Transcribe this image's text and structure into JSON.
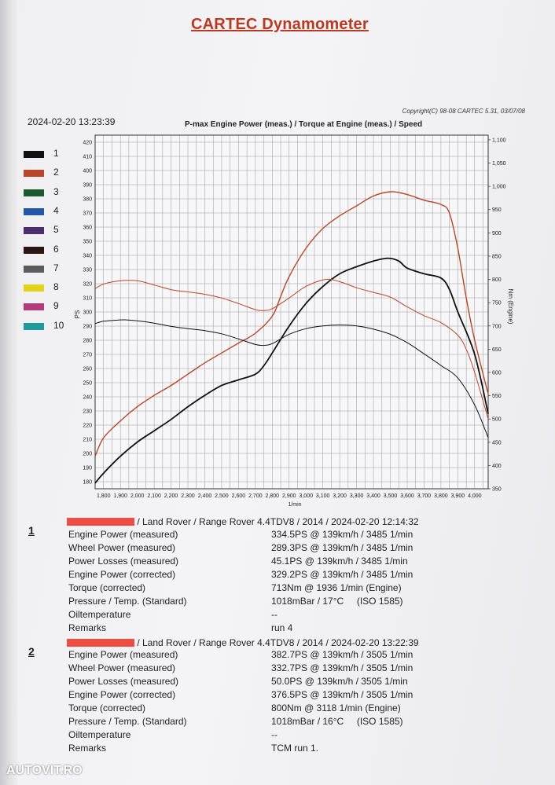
{
  "header": {
    "title": "CARTEC Dynamometer",
    "timestamp": "2024-02-20 13:23:39",
    "copyright": "Copyright(C) 98-08 CARTEC 5.31, 03/07/08"
  },
  "legend": [
    {
      "label": "1",
      "color": "#111111"
    },
    {
      "label": "2",
      "color": "#b8452a"
    },
    {
      "label": "3",
      "color": "#1e5a2f"
    },
    {
      "label": "4",
      "color": "#2358a8"
    },
    {
      "label": "5",
      "color": "#4a2e6e"
    },
    {
      "label": "6",
      "color": "#2a1616"
    },
    {
      "label": "7",
      "color": "#5c5c5c"
    },
    {
      "label": "8",
      "color": "#e3d21a"
    },
    {
      "label": "9",
      "color": "#b43a79"
    },
    {
      "label": "10",
      "color": "#1e9a9a"
    }
  ],
  "chart_data": {
    "type": "line",
    "title": "P-max Engine Power (meas.) / Torque at Engine (meas.) / Speed",
    "xlabel": "1/min",
    "ylabel": "PS",
    "y2label": "Nm (Engine)",
    "xlim": [
      1750,
      4080
    ],
    "ylim": [
      175,
      425
    ],
    "y2lim": [
      350,
      1110
    ],
    "x_ticks": [
      1800,
      1900,
      2000,
      2100,
      2200,
      2300,
      2400,
      2500,
      2600,
      2700,
      2800,
      2900,
      3000,
      3100,
      3200,
      3300,
      3400,
      3500,
      3600,
      3700,
      3800,
      3900,
      4000
    ],
    "x_tick_labels": [
      "1,800",
      "1,900",
      "2,000",
      "2,100",
      "2,200",
      "2,300",
      "2,400",
      "2,500",
      "2,600",
      "2,700",
      "2,800",
      "2,900",
      "3,000",
      "3,100",
      "3,200",
      "3,300",
      "3,400",
      "3,500",
      "3,600",
      "3,700",
      "3,800",
      "3,900",
      "4,000"
    ],
    "y_ticks": [
      180,
      190,
      200,
      210,
      220,
      230,
      240,
      250,
      260,
      270,
      280,
      290,
      300,
      310,
      320,
      330,
      340,
      350,
      360,
      370,
      380,
      390,
      400,
      410,
      420
    ],
    "y2_ticks": [
      350,
      400,
      450,
      500,
      550,
      600,
      650,
      700,
      750,
      800,
      850,
      900,
      950,
      1000,
      1050,
      1100
    ],
    "y2_tick_labels": [
      "350",
      "400",
      "450",
      "500",
      "550",
      "600",
      "650",
      "700",
      "750",
      "800",
      "850",
      "900",
      "950",
      "1,000",
      "1,050",
      "1,100"
    ],
    "grid": true,
    "series": [
      {
        "name": "1",
        "axis": "y",
        "color": "#111111",
        "x": [
          1750,
          1800,
          1900,
          2000,
          2100,
          2200,
          2300,
          2400,
          2500,
          2600,
          2700,
          2750,
          2800,
          2900,
          3000,
          3100,
          3200,
          3300,
          3400,
          3485,
          3550,
          3600,
          3700,
          3800,
          3850,
          3900,
          4000,
          4080
        ],
        "y": [
          179,
          186,
          198,
          208,
          216,
          224,
          233,
          241,
          248,
          252,
          256,
          262,
          271,
          290,
          306,
          318,
          327,
          332,
          336,
          338,
          336,
          331,
          327,
          324,
          316,
          300,
          270,
          228
        ]
      },
      {
        "name": "2",
        "axis": "y",
        "color": "#b8452a",
        "x": [
          1750,
          1800,
          1900,
          2000,
          2100,
          2200,
          2300,
          2400,
          2500,
          2600,
          2700,
          2800,
          2850,
          2900,
          3000,
          3100,
          3200,
          3300,
          3400,
          3505,
          3600,
          3700,
          3800,
          3850,
          3900,
          3950,
          4000,
          4080
        ],
        "y": [
          198,
          211,
          223,
          233,
          241,
          248,
          256,
          264,
          271,
          278,
          285,
          297,
          311,
          325,
          345,
          359,
          368,
          375,
          382,
          385,
          383,
          379,
          376,
          370,
          345,
          310,
          280,
          242
        ]
      },
      {
        "name": "1",
        "axis": "y2",
        "color": "#111111",
        "x": [
          1750,
          1800,
          1900,
          1936,
          2000,
          2100,
          2200,
          2300,
          2400,
          2500,
          2600,
          2700,
          2750,
          2800,
          2900,
          3000,
          3100,
          3200,
          3300,
          3400,
          3500,
          3600,
          3700,
          3800,
          3900,
          4000,
          4080
        ],
        "y": [
          705,
          710,
          713,
          713,
          711,
          706,
          699,
          694,
          690,
          683,
          672,
          660,
          658,
          662,
          682,
          694,
          700,
          702,
          700,
          693,
          682,
          664,
          640,
          615,
          588,
          530,
          460
        ]
      },
      {
        "name": "2",
        "axis": "y2",
        "color": "#b8452a",
        "x": [
          1750,
          1800,
          1900,
          2000,
          2100,
          2200,
          2300,
          2400,
          2500,
          2600,
          2700,
          2750,
          2800,
          2900,
          3000,
          3118,
          3200,
          3300,
          3400,
          3500,
          3600,
          3700,
          3800,
          3900,
          3950,
          4000,
          4080
        ],
        "y": [
          780,
          790,
          797,
          797,
          788,
          778,
          773,
          768,
          760,
          748,
          735,
          733,
          737,
          760,
          785,
          800,
          795,
          782,
          772,
          762,
          741,
          722,
          707,
          680,
          650,
          600,
          500
        ]
      }
    ]
  },
  "runs": [
    {
      "number": "1",
      "header": "/ Land Rover / Range Rover 4.4TDV8 / 2014 / 2024-02-20 12:14:32",
      "rows": [
        {
          "label": "Engine Power (measured)",
          "value": "334.5PS @ 139km/h / 3485 1/min"
        },
        {
          "label": "Wheel Power (measured)",
          "value": "289.3PS @ 139km/h / 3485 1/min"
        },
        {
          "label": "Power Losses (measured)",
          "value": "45.1PS @ 139km/h / 3485 1/min"
        },
        {
          "label": "Engine Power (corrected)",
          "value": "329.2PS @ 139km/h / 3485 1/min"
        },
        {
          "label": "Torque (corrected)",
          "value": "713Nm @ 1936 1/min (Engine)"
        },
        {
          "label": "Pressure / Temp. (Standard)",
          "value": "1018mBar / 17°C     (ISO 1585)"
        },
        {
          "label": "Oiltemperature",
          "value": "--"
        },
        {
          "label": "Remarks",
          "value": "run 4"
        }
      ]
    },
    {
      "number": "2",
      "header": "/ Land Rover / Range Rover 4.4TDV8 / 2014 / 2024-02-20 13:22:39",
      "rows": [
        {
          "label": "Engine Power (measured)",
          "value": "382.7PS @ 139km/h / 3505 1/min"
        },
        {
          "label": "Wheel Power (measured)",
          "value": "332.7PS @ 139km/h / 3505 1/min"
        },
        {
          "label": "Power Losses (measured)",
          "value": "50.0PS @ 139km/h / 3505 1/min"
        },
        {
          "label": "Engine Power (corrected)",
          "value": "376.5PS @ 139km/h / 3505 1/min"
        },
        {
          "label": "Torque (corrected)",
          "value": "800Nm @ 3118 1/min (Engine)"
        },
        {
          "label": "Pressure / Temp. (Standard)",
          "value": "1018mBar / 16°C     (ISO 1585)"
        },
        {
          "label": "Oiltemperature",
          "value": "--"
        },
        {
          "label": "Remarks",
          "value": "TCM run 1."
        }
      ]
    }
  ],
  "watermark": "AUTOVIT.RO"
}
